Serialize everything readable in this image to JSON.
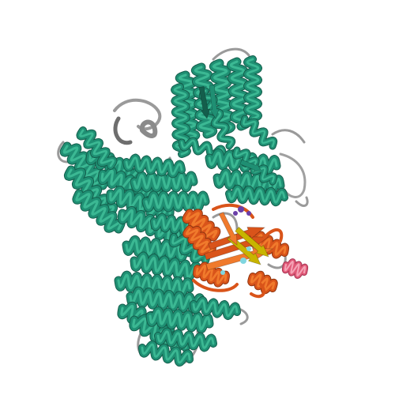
{
  "image": {
    "subject": "protein-structure-cartoon",
    "background_color": "#ffffff"
  },
  "colors": {
    "primary_chain": "#1f8f73",
    "primary_chain_highlight": "#3bb893",
    "primary_chain_shadow": "#145e4c",
    "secondary_chain": "#d9541a",
    "secondary_chain_highlight": "#f07a2c",
    "secondary_chain_shadow": "#8f3510",
    "beta_sheet": "#c8b400",
    "loop": "#9a9a9a",
    "loop_dark": "#6e6e6e",
    "accent_pink": "#e05a78",
    "accent_purple": "#6a3fa8",
    "accent_cyan": "#7fd6e0"
  }
}
